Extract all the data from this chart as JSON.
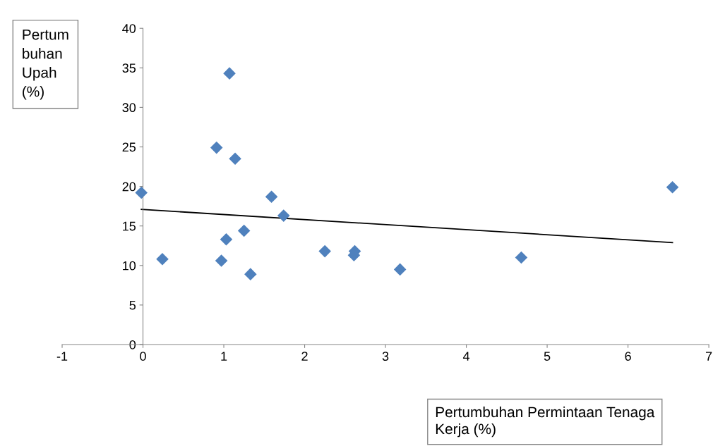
{
  "chart_data": {
    "type": "scatter",
    "xlabel": "Pertumbuhan Permintaan Tenaga\nKerja (%)",
    "ylabel": "Pertum\nbuhan\nUpah\n(%)",
    "xlim": [
      -1,
      7
    ],
    "xticks": [
      -1,
      0,
      1,
      2,
      3,
      4,
      5,
      6,
      7
    ],
    "ylim": [
      0,
      40
    ],
    "yticks": [
      0,
      5,
      10,
      15,
      20,
      25,
      30,
      35,
      40
    ],
    "grid": false,
    "series": [
      {
        "marker": "diamond",
        "color": "#4f81bd",
        "x": [
          -0.02,
          0.24,
          0.91,
          1.07,
          1.14,
          1.59,
          1.74,
          1.25,
          1.03,
          0.97,
          1.33,
          2.25,
          2.62,
          2.61,
          3.18,
          4.68,
          6.55
        ],
        "values": [
          19.2,
          10.8,
          24.9,
          34.3,
          23.5,
          18.7,
          16.3,
          14.4,
          13.3,
          10.6,
          8.9,
          11.8,
          11.8,
          11.3,
          9.5,
          11.0,
          19.9
        ]
      },
      {
        "type": "line",
        "color": "#000000",
        "x": [
          -0.02,
          6.55
        ],
        "values": [
          17.1,
          12.9
        ]
      }
    ]
  }
}
